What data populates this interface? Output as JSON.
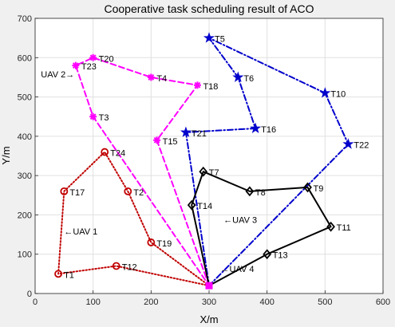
{
  "chart_data": {
    "type": "line",
    "title": "Cooperative task scheduling result of ACO",
    "xlabel": "X/m",
    "ylabel": "Y/m",
    "xlim": [
      0,
      600
    ],
    "ylim": [
      0,
      700
    ],
    "xticks": [
      0,
      100,
      200,
      300,
      400,
      500,
      600
    ],
    "yticks": [
      0,
      100,
      200,
      300,
      400,
      500,
      600,
      700
    ],
    "grid": true,
    "depot": {
      "x": 300,
      "y": 20,
      "color": "#ff00ff"
    },
    "series": [
      {
        "name": "UAV 1",
        "color": "#c00000",
        "linestyle": "dotted",
        "marker": "circle",
        "points": [
          {
            "x": 300,
            "y": 20
          },
          {
            "x": 140,
            "y": 70,
            "label": "T12"
          },
          {
            "x": 40,
            "y": 50,
            "label": "T1"
          },
          {
            "x": 50,
            "y": 260,
            "label": "T17"
          },
          {
            "x": 120,
            "y": 360,
            "label": "T24"
          },
          {
            "x": 160,
            "y": 260,
            "label": "T2"
          },
          {
            "x": 200,
            "y": 130,
            "label": "T19"
          },
          {
            "x": 300,
            "y": 20
          }
        ]
      },
      {
        "name": "UAV 2",
        "color": "#ff00ff",
        "linestyle": "dashed",
        "marker": "asterisk",
        "points": [
          {
            "x": 300,
            "y": 20
          },
          {
            "x": 210,
            "y": 390,
            "label": "T15"
          },
          {
            "x": 280,
            "y": 530,
            "label": "T18"
          },
          {
            "x": 200,
            "y": 550,
            "label": "T4"
          },
          {
            "x": 100,
            "y": 600,
            "label": "T20"
          },
          {
            "x": 70,
            "y": 580,
            "label": "T23"
          },
          {
            "x": 100,
            "y": 450,
            "label": "T3"
          },
          {
            "x": 300,
            "y": 20
          }
        ]
      },
      {
        "name": "UAV 3",
        "color": "#0000cc",
        "linestyle": "dashdot",
        "marker": "star",
        "points": [
          {
            "x": 300,
            "y": 20
          },
          {
            "x": 260,
            "y": 410,
            "label": "T21"
          },
          {
            "x": 380,
            "y": 420,
            "label": "T16"
          },
          {
            "x": 350,
            "y": 550,
            "label": "T6"
          },
          {
            "x": 300,
            "y": 650,
            "label": "T5"
          },
          {
            "x": 500,
            "y": 510,
            "label": "T10"
          },
          {
            "x": 540,
            "y": 380,
            "label": "T22"
          },
          {
            "x": 300,
            "y": 20
          }
        ]
      },
      {
        "name": "UAV 4",
        "color": "#000000",
        "linestyle": "solid",
        "marker": "diamond",
        "points": [
          {
            "x": 300,
            "y": 20
          },
          {
            "x": 400,
            "y": 100,
            "label": "T13"
          },
          {
            "x": 510,
            "y": 170,
            "label": "T11"
          },
          {
            "x": 470,
            "y": 270,
            "label": "T9"
          },
          {
            "x": 370,
            "y": 260,
            "label": "T8"
          },
          {
            "x": 290,
            "y": 310,
            "label": "T7"
          },
          {
            "x": 270,
            "y": 225,
            "label": "T14"
          },
          {
            "x": 300,
            "y": 20
          }
        ]
      }
    ],
    "annotations": [
      {
        "text": "UAV 2→",
        "x": 10,
        "y": 550
      },
      {
        "text": "←UAV 1",
        "x": 50,
        "y": 150
      },
      {
        "text": "←UAV 3",
        "x": 325,
        "y": 180
      },
      {
        "text": "←UAV 4",
        "x": 320,
        "y": 55
      }
    ]
  }
}
